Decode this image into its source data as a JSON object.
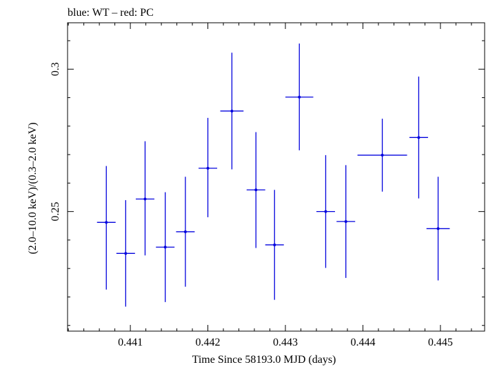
{
  "chart_data": {
    "type": "scatter",
    "title": "blue: WT – red: PC",
    "xlabel": "Time Since 58193.0 MJD (days)",
    "ylabel": "(2.0–10.0 keV)/(0.3–2.0 keV)",
    "xlim": [
      0.44019,
      0.44557
    ],
    "ylim": [
      0.208,
      0.3163
    ],
    "x_ticks": [
      {
        "value": 0.441,
        "label": "0.441"
      },
      {
        "value": 0.442,
        "label": "0.442"
      },
      {
        "value": 0.443,
        "label": "0.443"
      },
      {
        "value": 0.444,
        "label": "0.444"
      },
      {
        "value": 0.445,
        "label": "0.445"
      }
    ],
    "y_ticks": [
      {
        "value": 0.25,
        "label": "0.25"
      },
      {
        "value": 0.3,
        "label": "0.3"
      }
    ],
    "grid": false,
    "series": [
      {
        "color": "#0000dd",
        "points": [
          {
            "x": 0.44069,
            "xerr": 0.00012,
            "y": 0.2462,
            "yerr_low": 0.0236,
            "yerr_high": 0.0198
          },
          {
            "x": 0.44094,
            "xerr": 0.00012,
            "y": 0.2353,
            "yerr_low": 0.0187,
            "yerr_high": 0.0187
          },
          {
            "x": 0.44119,
            "xerr": 0.00012,
            "y": 0.2544,
            "yerr_low": 0.0198,
            "yerr_high": 0.0203
          },
          {
            "x": 0.44145,
            "xerr": 0.00012,
            "y": 0.2375,
            "yerr_low": 0.0193,
            "yerr_high": 0.0193
          },
          {
            "x": 0.44171,
            "xerr": 0.00012,
            "y": 0.2429,
            "yerr_low": 0.0193,
            "yerr_high": 0.0193
          },
          {
            "x": 0.442,
            "xerr": 0.00012,
            "y": 0.2652,
            "yerr_low": 0.0172,
            "yerr_high": 0.0177
          },
          {
            "x": 0.44231,
            "xerr": 0.00015,
            "y": 0.2853,
            "yerr_low": 0.0205,
            "yerr_high": 0.0205
          },
          {
            "x": 0.44262,
            "xerr": 0.00012,
            "y": 0.2576,
            "yerr_low": 0.0204,
            "yerr_high": 0.0203
          },
          {
            "x": 0.44286,
            "xerr": 0.00012,
            "y": 0.2383,
            "yerr_low": 0.0193,
            "yerr_high": 0.0193
          },
          {
            "x": 0.44318,
            "xerr": 0.00018,
            "y": 0.2902,
            "yerr_low": 0.0187,
            "yerr_high": 0.0188
          },
          {
            "x": 0.44352,
            "xerr": 0.00012,
            "y": 0.25,
            "yerr_low": 0.0198,
            "yerr_high": 0.0198
          },
          {
            "x": 0.44378,
            "xerr": 0.00012,
            "y": 0.2465,
            "yerr_low": 0.0198,
            "yerr_high": 0.0198
          },
          {
            "x": 0.44425,
            "xerr": 0.00032,
            "y": 0.2698,
            "yerr_low": 0.0128,
            "yerr_high": 0.0128
          },
          {
            "x": 0.44472,
            "xerr": 0.00012,
            "y": 0.276,
            "yerr_low": 0.0214,
            "yerr_high": 0.0214
          },
          {
            "x": 0.44497,
            "xerr": 0.00015,
            "y": 0.244,
            "yerr_low": 0.0182,
            "yerr_high": 0.0182
          }
        ]
      }
    ]
  }
}
